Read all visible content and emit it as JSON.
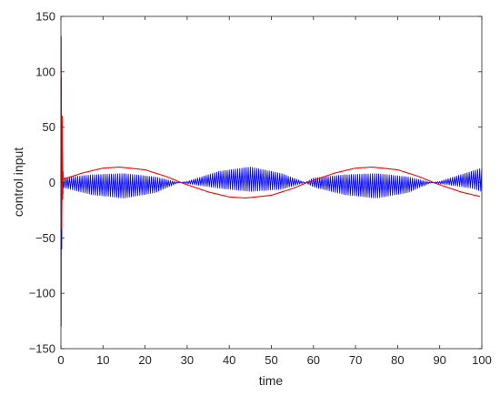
{
  "chart_data": {
    "type": "line",
    "title": "",
    "xlabel": "time",
    "ylabel": "control input",
    "xlim": [
      0,
      100
    ],
    "ylim": [
      -150,
      150
    ],
    "xticks": [
      0,
      10,
      20,
      30,
      40,
      50,
      60,
      70,
      80,
      90,
      100
    ],
    "yticks": [
      -150,
      -100,
      -50,
      0,
      50,
      100,
      150
    ],
    "grid": false,
    "legend": "none",
    "series": [
      {
        "color": "#0000ff",
        "style": "rapidly oscillating band",
        "initial_transient": {
          "min": -130,
          "max": 95,
          "duration": 0.5
        },
        "envelope": {
          "x": [
            0,
            7.5,
            15,
            22.5,
            28,
            30,
            37.5,
            45,
            52.5,
            58,
            60,
            67.5,
            75,
            82.5,
            88,
            90,
            97.5,
            100
          ],
          "upper": [
            4,
            7,
            8,
            5,
            0,
            1,
            10,
            14,
            8,
            0,
            4,
            7,
            8,
            5,
            0,
            1,
            10,
            13
          ],
          "lower": [
            -4,
            -11,
            -14,
            -9,
            0,
            -1,
            -5,
            -8,
            -6,
            0,
            -4,
            -11,
            -14,
            -9,
            0,
            -1,
            -5,
            -8
          ]
        }
      },
      {
        "color": "#ff0000",
        "style": "smooth sinusoid",
        "initial_transient": {
          "max": 132,
          "min": -42,
          "duration": 0.6
        },
        "x": [
          0.6,
          5,
          10,
          14,
          20,
          25,
          28.5,
          35,
          40,
          44,
          50,
          55,
          58.5,
          65,
          70,
          74,
          80,
          85,
          88.5,
          95,
          100
        ],
        "values": [
          3,
          8.5,
          13,
          14,
          11.5,
          5.5,
          0,
          -8.5,
          -13,
          -14,
          -11.5,
          -5.5,
          0,
          8.5,
          13,
          14,
          11.5,
          5.5,
          0,
          -8.5,
          -13
        ]
      }
    ]
  }
}
